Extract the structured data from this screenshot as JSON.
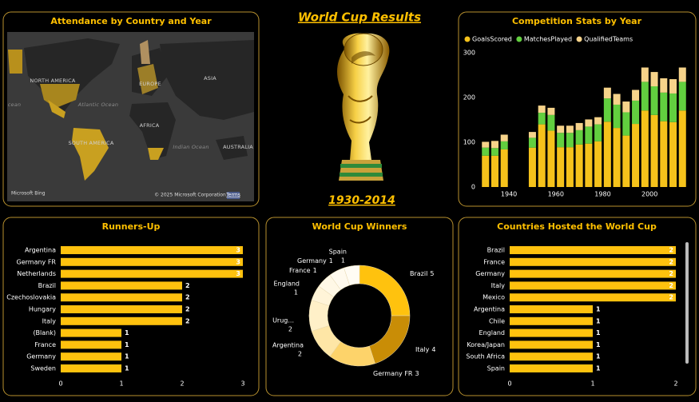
{
  "header": {
    "title": "World Cup Results",
    "subtitle": "1930-2014"
  },
  "map": {
    "title": "Attendance by Country and Year",
    "labels": [
      "NORTH AMERICA",
      "EUROPE",
      "ASIA",
      "Atlantic Ocean",
      "AFRICA",
      "SOUTH AMERICA",
      "Indian Ocean",
      "AUSTRALIA",
      "cean"
    ],
    "logo": "Microsoft Bing",
    "attribution": "© 2025 Microsoft Corporation",
    "terms": "Terms"
  },
  "chart_data": [
    {
      "type": "stacked-bar",
      "title": "Competition Stats by Year",
      "legend": "top-left",
      "x": [
        1930,
        1934,
        1938,
        1950,
        1954,
        1958,
        1962,
        1966,
        1970,
        1974,
        1978,
        1982,
        1986,
        1990,
        1994,
        1998,
        2002,
        2006,
        2010,
        2014
      ],
      "series": [
        {
          "name": "GoalsScored",
          "color": "#f5c21b",
          "values": [
            70,
            70,
            84,
            88,
            140,
            126,
            89,
            89,
            95,
            97,
            102,
            146,
            132,
            115,
            141,
            171,
            161,
            147,
            145,
            171
          ]
        },
        {
          "name": "MatchesPlayed",
          "color": "#62cf3f",
          "values": [
            18,
            17,
            18,
            22,
            26,
            35,
            32,
            32,
            32,
            38,
            38,
            52,
            52,
            52,
            52,
            64,
            64,
            64,
            64,
            64
          ]
        },
        {
          "name": "QualifiedTeams",
          "color": "#f6d38a",
          "values": [
            13,
            16,
            15,
            13,
            16,
            16,
            16,
            16,
            16,
            16,
            16,
            24,
            24,
            24,
            24,
            32,
            32,
            32,
            32,
            32
          ]
        }
      ],
      "xlim": [
        1926,
        2018
      ],
      "xticks": [
        1940,
        1960,
        1980,
        2000
      ],
      "ylim": [
        0,
        300
      ],
      "yticks": [
        0,
        100,
        200,
        300
      ]
    },
    {
      "type": "horizontal-bar",
      "title": "Runners-Up",
      "color": "#ffc20e",
      "categories": [
        "Argentina",
        "Germany FR",
        "Netherlands",
        "Brazil",
        "Czechoslovakia",
        "Hungary",
        "Italy",
        "(Blank)",
        "France",
        "Germany",
        "Sweden"
      ],
      "values": [
        3,
        3,
        3,
        2,
        2,
        2,
        2,
        1,
        1,
        1,
        1
      ],
      "xlim": [
        0,
        3
      ],
      "xticks": [
        0,
        1,
        2,
        3
      ]
    },
    {
      "type": "donut",
      "title": "World Cup Winners",
      "categories": [
        "Brazil",
        "Italy",
        "Germany FR",
        "Argentina",
        "Urug...",
        "England",
        "France",
        "Germany",
        "Spain"
      ],
      "values": [
        5,
        4,
        3,
        2,
        2,
        1,
        1,
        1,
        1
      ],
      "colors": [
        "#ffc20e",
        "#c98d06",
        "#fdd36a",
        "#fee6a6",
        "#fff0c8",
        "#fff4d8",
        "#fff8e6",
        "#fffaee",
        "#fffcf4"
      ]
    },
    {
      "type": "horizontal-bar",
      "title": "Countries Hosted the World Cup",
      "color": "#ffc20e",
      "categories": [
        "Brazil",
        "France",
        "Germany",
        "Italy",
        "Mexico",
        "Argentina",
        "Chile",
        "England",
        "Korea/Japan",
        "South Africa",
        "Spain"
      ],
      "values": [
        2,
        2,
        2,
        2,
        2,
        1,
        1,
        1,
        1,
        1,
        1
      ],
      "xlim": [
        0,
        2
      ],
      "xticks": [
        0,
        1,
        2
      ]
    }
  ]
}
